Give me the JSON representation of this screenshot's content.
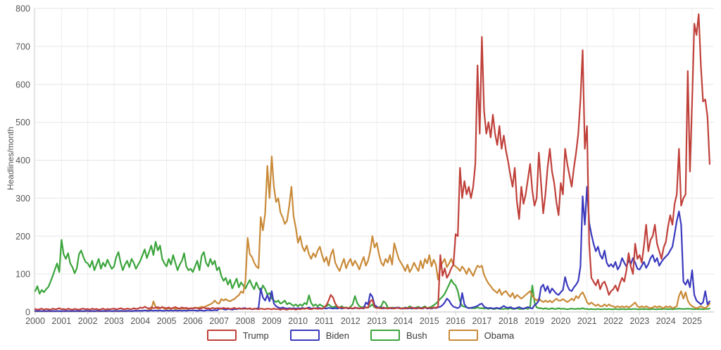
{
  "chart_data": {
    "type": "line",
    "title": "",
    "xlabel": "",
    "ylabel": "Headlines/month",
    "ylim": [
      0,
      800
    ],
    "yticks": [
      0,
      100,
      200,
      300,
      400,
      500,
      600,
      700,
      800
    ],
    "x_start_year": 2000,
    "points_per_year": 12,
    "x_end": "2025-09",
    "xticks": [
      2000,
      2001,
      2002,
      2003,
      2004,
      2005,
      2006,
      2007,
      2008,
      2009,
      2010,
      2011,
      2012,
      2013,
      2014,
      2015,
      2016,
      2017,
      2018,
      2019,
      2020,
      2021,
      2022,
      2023,
      2024,
      2025
    ],
    "grid": true,
    "legend_position": "bottom",
    "series": [
      {
        "name": "Trump",
        "color": "#c0403a",
        "values": [
          8,
          6,
          7,
          9,
          6,
          8,
          7,
          6,
          9,
          7,
          8,
          10,
          7,
          8,
          6,
          9,
          7,
          6,
          8,
          7,
          6,
          8,
          9,
          7,
          8,
          6,
          9,
          7,
          8,
          6,
          7,
          9,
          6,
          8,
          7,
          8,
          9,
          7,
          8,
          10,
          8,
          7,
          9,
          8,
          7,
          10,
          8,
          9,
          12,
          10,
          14,
          11,
          9,
          12,
          10,
          11,
          13,
          10,
          12,
          11,
          10,
          12,
          9,
          11,
          13,
          10,
          9,
          12,
          10,
          11,
          9,
          10,
          9,
          11,
          10,
          8,
          10,
          12,
          9,
          10,
          8,
          11,
          9,
          10,
          10,
          8,
          11,
          9,
          10,
          8,
          9,
          11,
          8,
          10,
          9,
          8,
          9,
          8,
          10,
          7,
          9,
          8,
          7,
          9,
          8,
          7,
          9,
          8,
          7,
          9,
          7,
          8,
          6,
          8,
          7,
          6,
          8,
          7,
          8,
          6,
          8,
          7,
          9,
          8,
          10,
          8,
          7,
          9,
          10,
          8,
          9,
          8,
          12,
          18,
          30,
          45,
          38,
          22,
          14,
          11,
          12,
          10,
          11,
          10,
          11,
          9,
          12,
          10,
          9,
          11,
          10,
          12,
          11,
          28,
          32,
          14,
          10,
          11,
          9,
          12,
          10,
          9,
          11,
          10,
          9,
          11,
          10,
          9,
          10,
          9,
          11,
          10,
          12,
          9,
          10,
          11,
          9,
          10,
          12,
          10,
          11,
          10,
          12,
          11,
          14,
          150,
          95,
          115,
          90,
          100,
          115,
          125,
          205,
          200,
          380,
          300,
          345,
          310,
          330,
          300,
          330,
          390,
          650,
          470,
          725,
          530,
          470,
          500,
          460,
          520,
          470,
          440,
          490,
          430,
          465,
          425,
          395,
          360,
          330,
          380,
          290,
          245,
          330,
          285,
          310,
          350,
          390,
          320,
          280,
          300,
          420,
          340,
          260,
          310,
          380,
          430,
          370,
          340,
          290,
          255,
          340,
          310,
          430,
          390,
          360,
          330,
          380,
          420,
          470,
          560,
          690,
          430,
          490,
          180,
          90,
          80,
          70,
          85,
          60,
          75,
          80,
          65,
          45,
          55,
          60,
          70,
          55,
          75,
          90,
          80,
          110,
          155,
          120,
          100,
          180,
          140,
          150,
          130,
          175,
          230,
          160,
          190,
          200,
          230,
          180,
          160,
          140,
          170,
          185,
          225,
          255,
          230,
          285,
          310,
          430,
          280,
          300,
          310,
          635,
          370,
          555,
          760,
          730,
          785,
          650,
          555,
          560,
          515,
          390
        ]
      },
      {
        "name": "Biden",
        "color": "#3b3abe",
        "values": [
          3,
          2,
          3,
          2,
          3,
          2,
          3,
          2,
          3,
          2,
          3,
          2,
          2,
          3,
          2,
          3,
          2,
          3,
          2,
          3,
          2,
          3,
          2,
          3,
          3,
          2,
          3,
          2,
          3,
          3,
          2,
          3,
          2,
          3,
          3,
          2,
          3,
          3,
          2,
          3,
          3,
          2,
          3,
          3,
          2,
          3,
          3,
          3,
          3,
          3,
          4,
          3,
          3,
          4,
          3,
          4,
          3,
          4,
          3,
          3,
          4,
          3,
          4,
          3,
          4,
          3,
          4,
          3,
          4,
          3,
          4,
          4,
          4,
          4,
          3,
          4,
          4,
          3,
          4,
          5,
          4,
          4,
          5,
          4,
          8,
          10,
          7,
          6,
          8,
          7,
          6,
          8,
          7,
          9,
          8,
          10,
          10,
          8,
          9,
          7,
          8,
          9,
          10,
          62,
          38,
          30,
          45,
          28,
          55,
          22,
          15,
          12,
          10,
          12,
          10,
          9,
          10,
          9,
          10,
          9,
          10,
          9,
          11,
          9,
          10,
          12,
          9,
          10,
          9,
          11,
          10,
          9,
          10,
          9,
          11,
          10,
          9,
          10,
          9,
          11,
          9,
          10,
          11,
          9,
          10,
          9,
          10,
          11,
          9,
          10,
          9,
          25,
          20,
          48,
          40,
          18,
          14,
          10,
          12,
          9,
          11,
          9,
          10,
          9,
          11,
          10,
          12,
          9,
          9,
          11,
          9,
          10,
          9,
          11,
          9,
          10,
          11,
          9,
          12,
          9,
          10,
          9,
          11,
          10,
          12,
          14,
          18,
          25,
          35,
          30,
          20,
          14,
          12,
          10,
          14,
          50,
          20,
          12,
          10,
          11,
          12,
          14,
          16,
          20,
          22,
          14,
          11,
          10,
          11,
          9,
          10,
          11,
          9,
          12,
          16,
          12,
          11,
          13,
          10,
          9,
          11,
          13,
          10,
          9,
          11,
          13,
          11,
          9,
          18,
          22,
          30,
          65,
          72,
          55,
          68,
          50,
          62,
          55,
          48,
          45,
          52,
          58,
          92,
          70,
          58,
          55,
          65,
          72,
          82,
          120,
          305,
          230,
          330,
          235,
          205,
          180,
          160,
          172,
          150,
          140,
          162,
          130,
          120,
          126,
          118,
          132,
          112,
          122,
          142,
          130,
          120,
          136,
          126,
          142,
          130,
          114,
          112,
          122,
          132,
          116,
          126,
          142,
          150,
          132,
          142,
          122,
          132,
          140,
          146,
          152,
          162,
          172,
          205,
          240,
          265,
          230,
          80,
          72,
          85,
          65,
          110,
          45,
          30,
          25,
          20,
          25,
          55,
          20,
          28
        ]
      },
      {
        "name": "Bush",
        "color": "#3ba43c",
        "values": [
          55,
          68,
          48,
          58,
          52,
          60,
          66,
          80,
          95,
          112,
          128,
          105,
          190,
          152,
          140,
          155,
          128,
          118,
          102,
          115,
          152,
          162,
          145,
          132,
          128,
          118,
          135,
          110,
          125,
          140,
          114,
          130,
          120,
          138,
          125,
          114,
          120,
          145,
          158,
          130,
          110,
          125,
          135,
          118,
          140,
          130,
          114,
          125,
          135,
          150,
          165,
          142,
          158,
          175,
          150,
          185,
          162,
          175,
          140,
          128,
          120,
          140,
          125,
          150,
          130,
          110,
          125,
          135,
          155,
          120,
          110,
          114,
          105,
          120,
          135,
          110,
          148,
          158,
          130,
          120,
          140,
          125,
          135,
          110,
          118,
          95,
          82,
          90,
          72,
          85,
          62,
          75,
          88,
          65,
          78,
          70,
          62,
          74,
          84,
          70,
          60,
          78,
          64,
          55,
          70,
          60,
          46,
          50,
          36,
          30,
          26,
          30,
          22,
          25,
          30,
          20,
          24,
          20,
          16,
          20,
          15,
          20,
          16,
          24,
          20,
          44,
          24,
          16,
          20,
          15,
          20,
          16,
          13,
          15,
          20,
          15,
          12,
          15,
          11,
          12,
          15,
          11,
          12,
          10,
          14,
          20,
          42,
          24,
          15,
          12,
          14,
          11,
          12,
          15,
          20,
          12,
          11,
          12,
          15,
          28,
          24,
          12,
          10,
          12,
          10,
          12,
          10,
          10,
          10,
          12,
          10,
          15,
          12,
          10,
          12,
          14,
          10,
          12,
          15,
          10,
          12,
          14,
          18,
          22,
          28,
          35,
          40,
          48,
          60,
          72,
          85,
          75,
          70,
          55,
          28,
          16,
          14,
          12,
          11,
          10,
          10,
          10,
          12,
          10,
          10,
          9,
          10,
          8,
          10,
          8,
          8,
          10,
          8,
          8,
          8,
          9,
          8,
          10,
          8,
          8,
          10,
          8,
          8,
          8,
          10,
          8,
          12,
          70,
          25,
          12,
          10,
          10,
          8,
          10,
          8,
          8,
          10,
          8,
          8,
          10,
          8,
          9,
          8,
          7,
          8,
          9,
          8,
          8,
          9,
          8,
          10,
          8,
          8,
          7,
          8,
          7,
          7,
          8,
          7,
          7,
          8,
          7,
          8,
          7,
          7,
          8,
          7,
          7,
          8,
          7,
          7,
          8,
          7,
          8,
          8,
          7,
          7,
          8,
          7,
          8,
          7,
          7,
          8,
          7,
          7,
          8,
          7,
          8,
          8,
          7,
          8,
          7,
          8,
          8,
          9,
          8,
          8,
          8,
          9,
          8,
          8,
          7,
          8,
          7,
          8,
          7,
          8,
          8,
          9
        ]
      },
      {
        "name": "Obama",
        "color": "#c98a38",
        "values": [
          2,
          2,
          2,
          2,
          2,
          2,
          2,
          2,
          2,
          2,
          2,
          2,
          2,
          2,
          2,
          2,
          2,
          2,
          2,
          2,
          2,
          2,
          2,
          2,
          2,
          2,
          2,
          2,
          2,
          2,
          2,
          2,
          2,
          2,
          3,
          2,
          2,
          2,
          3,
          2,
          2,
          3,
          2,
          3,
          2,
          3,
          3,
          3,
          3,
          3,
          4,
          4,
          5,
          6,
          28,
          14,
          8,
          10,
          14,
          8,
          8,
          9,
          8,
          10,
          8,
          8,
          10,
          8,
          10,
          8,
          8,
          10,
          10,
          12,
          10,
          12,
          14,
          12,
          15,
          18,
          20,
          24,
          30,
          24,
          22,
          34,
          30,
          34,
          30,
          28,
          32,
          34,
          40,
          44,
          54,
          50,
          82,
          195,
          152,
          145,
          130,
          120,
          115,
          250,
          215,
          260,
          385,
          300,
          410,
          330,
          290,
          300,
          262,
          250,
          232,
          240,
          280,
          330,
          252,
          222,
          182,
          200,
          172,
          160,
          175,
          152,
          140,
          155,
          145,
          162,
          172,
          150,
          132,
          145,
          122,
          150,
          165,
          130,
          118,
          108,
          125,
          140,
          115,
          130,
          140,
          122,
          135,
          125,
          112,
          130,
          145,
          122,
          135,
          160,
          200,
          170,
          182,
          152,
          130,
          122,
          140,
          130,
          150,
          125,
          181,
          160,
          140,
          130,
          120,
          108,
          125,
          105,
          115,
          130,
          118,
          108,
          135,
          115,
          140,
          128,
          150,
          120,
          138,
          124,
          85,
          120,
          130,
          140,
          118,
          128,
          140,
          124,
          120,
          115,
          108,
          120,
          112,
          100,
          115,
          105,
          95,
          110,
          122,
          118,
          122,
          98,
          85,
          75,
          68,
          60,
          55,
          50,
          60,
          45,
          52,
          55,
          46,
          40,
          50,
          36,
          45,
          40,
          35,
          40,
          45,
          50,
          55,
          42,
          36,
          30,
          35,
          30,
          26,
          30,
          26,
          30,
          25,
          30,
          35,
          30,
          30,
          34,
          30,
          26,
          30,
          35,
          30,
          42,
          36,
          46,
          52,
          40,
          26,
          20,
          25,
          20,
          16,
          20,
          15,
          15,
          20,
          15,
          20,
          16,
          15,
          12,
          15,
          12,
          15,
          12,
          15,
          12,
          15,
          20,
          25,
          15,
          12,
          15,
          12,
          15,
          12,
          10,
          12,
          15,
          12,
          15,
          12,
          10,
          15,
          12,
          15,
          10,
          12,
          15,
          42,
          55,
          35,
          52,
          30,
          20,
          15,
          12,
          10,
          12,
          15,
          12,
          10,
          15,
          22
        ]
      }
    ]
  },
  "colors": {
    "grid": "#e6e6e6",
    "axis": "#cccccc",
    "tick_text": "#555555",
    "legend_text": "#3a3a3a",
    "background": "#ffffff"
  }
}
